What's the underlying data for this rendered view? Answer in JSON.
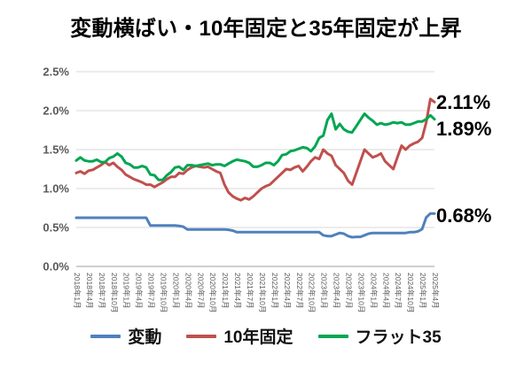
{
  "title": "変動横ばい・10年固定と35年固定が上昇",
  "annotations": [
    {
      "label": "2.11%",
      "series": "10年固定"
    },
    {
      "label": "1.89%",
      "series": "フラット35"
    },
    {
      "label": "0.68%",
      "series": "変動"
    }
  ],
  "chart_data": {
    "type": "line",
    "title": "変動横ばい・10年固定と35年固定が上昇",
    "xlabel": "",
    "ylabel": "",
    "ylim": [
      0,
      2.5
    ],
    "y_ticks": [
      "0.0%",
      "0.5%",
      "1.0%",
      "1.5%",
      "2.0%",
      "2.5%"
    ],
    "grid": true,
    "legend_position": "bottom",
    "x_tick_step": 3,
    "x": [
      "2018年1月",
      "2018年2月",
      "2018年3月",
      "2018年4月",
      "2018年5月",
      "2018年6月",
      "2018年7月",
      "2018年8月",
      "2018年9月",
      "2018年10月",
      "2018年11月",
      "2018年12月",
      "2019年1月",
      "2019年2月",
      "2019年3月",
      "2019年4月",
      "2019年5月",
      "2019年6月",
      "2019年7月",
      "2019年8月",
      "2019年9月",
      "2019年10月",
      "2019年11月",
      "2019年12月",
      "2020年1月",
      "2020年2月",
      "2020年3月",
      "2020年4月",
      "2020年5月",
      "2020年6月",
      "2020年7月",
      "2020年8月",
      "2020年9月",
      "2020年10月",
      "2020年11月",
      "2020年12月",
      "2021年1月",
      "2021年2月",
      "2021年3月",
      "2021年4月",
      "2021年5月",
      "2021年6月",
      "2021年7月",
      "2021年8月",
      "2021年9月",
      "2021年10月",
      "2021年11月",
      "2021年12月",
      "2022年1月",
      "2022年2月",
      "2022年3月",
      "2022年4月",
      "2022年5月",
      "2022年6月",
      "2022年7月",
      "2022年8月",
      "2022年9月",
      "2022年10月",
      "2022年11月",
      "2022年12月",
      "2023年1月",
      "2023年2月",
      "2023年3月",
      "2023年4月",
      "2023年5月",
      "2023年6月",
      "2023年7月",
      "2023年8月",
      "2023年9月",
      "2023年10月",
      "2023年11月",
      "2023年12月",
      "2024年1月",
      "2024年2月",
      "2024年3月",
      "2024年4月",
      "2024年5月",
      "2024年6月",
      "2024年7月",
      "2024年8月",
      "2024年9月",
      "2024年10月",
      "2024年11月",
      "2024年12月",
      "2025年1月",
      "2025年2月",
      "2025年3月",
      "2025年4月"
    ],
    "series": [
      {
        "name": "変動",
        "color": "#4f81bd",
        "end_label": "0.68%",
        "values": [
          0.625,
          0.625,
          0.625,
          0.625,
          0.625,
          0.625,
          0.625,
          0.625,
          0.625,
          0.625,
          0.625,
          0.625,
          0.625,
          0.625,
          0.625,
          0.625,
          0.625,
          0.625,
          0.525,
          0.525,
          0.525,
          0.525,
          0.525,
          0.525,
          0.525,
          0.52,
          0.51,
          0.475,
          0.475,
          0.475,
          0.475,
          0.475,
          0.475,
          0.475,
          0.475,
          0.475,
          0.475,
          0.47,
          0.46,
          0.44,
          0.44,
          0.44,
          0.44,
          0.44,
          0.44,
          0.44,
          0.44,
          0.44,
          0.44,
          0.44,
          0.44,
          0.44,
          0.44,
          0.44,
          0.44,
          0.44,
          0.44,
          0.44,
          0.44,
          0.44,
          0.4,
          0.39,
          0.39,
          0.41,
          0.43,
          0.42,
          0.39,
          0.375,
          0.38,
          0.38,
          0.4,
          0.42,
          0.43,
          0.43,
          0.43,
          0.43,
          0.43,
          0.43,
          0.43,
          0.43,
          0.43,
          0.44,
          0.44,
          0.45,
          0.48,
          0.63,
          0.68,
          0.68
        ]
      },
      {
        "name": "10年固定",
        "color": "#c0504d",
        "end_label": "2.11%",
        "values": [
          1.2,
          1.22,
          1.19,
          1.23,
          1.24,
          1.27,
          1.3,
          1.34,
          1.3,
          1.33,
          1.28,
          1.24,
          1.18,
          1.15,
          1.12,
          1.1,
          1.08,
          1.05,
          1.05,
          1.02,
          1.05,
          1.08,
          1.12,
          1.15,
          1.15,
          1.2,
          1.19,
          1.24,
          1.27,
          1.29,
          1.28,
          1.27,
          1.28,
          1.25,
          1.22,
          1.2,
          1.05,
          0.95,
          0.9,
          0.87,
          0.85,
          0.88,
          0.86,
          0.9,
          0.95,
          1.0,
          1.03,
          1.05,
          1.1,
          1.15,
          1.2,
          1.25,
          1.24,
          1.27,
          1.29,
          1.22,
          1.28,
          1.35,
          1.4,
          1.38,
          1.5,
          1.45,
          1.42,
          1.3,
          1.25,
          1.2,
          1.1,
          1.05,
          1.2,
          1.35,
          1.5,
          1.45,
          1.4,
          1.42,
          1.45,
          1.35,
          1.3,
          1.25,
          1.4,
          1.55,
          1.5,
          1.55,
          1.58,
          1.6,
          1.65,
          1.85,
          2.15,
          2.11
        ]
      },
      {
        "name": "フラット35",
        "color": "#00a651",
        "end_label": "1.89%",
        "values": [
          1.36,
          1.4,
          1.36,
          1.35,
          1.35,
          1.37,
          1.34,
          1.34,
          1.39,
          1.41,
          1.45,
          1.41,
          1.33,
          1.31,
          1.27,
          1.27,
          1.29,
          1.27,
          1.18,
          1.17,
          1.11,
          1.11,
          1.17,
          1.21,
          1.27,
          1.28,
          1.24,
          1.3,
          1.3,
          1.29,
          1.3,
          1.31,
          1.32,
          1.3,
          1.31,
          1.31,
          1.29,
          1.32,
          1.35,
          1.37,
          1.36,
          1.35,
          1.33,
          1.28,
          1.28,
          1.3,
          1.33,
          1.33,
          1.3,
          1.35,
          1.43,
          1.44,
          1.48,
          1.49,
          1.51,
          1.53,
          1.52,
          1.48,
          1.54,
          1.65,
          1.68,
          1.88,
          1.96,
          1.76,
          1.83,
          1.76,
          1.73,
          1.72,
          1.8,
          1.88,
          1.96,
          1.91,
          1.87,
          1.82,
          1.84,
          1.82,
          1.83,
          1.85,
          1.84,
          1.85,
          1.82,
          1.82,
          1.84,
          1.86,
          1.86,
          1.89,
          1.94,
          1.89
        ]
      }
    ]
  }
}
